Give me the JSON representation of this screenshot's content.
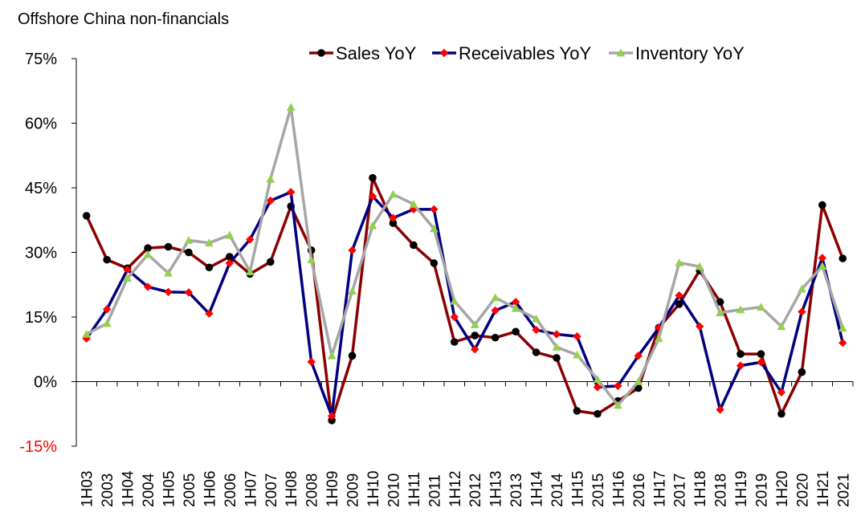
{
  "chart_data": {
    "type": "line",
    "title": "Offshore China non-financials",
    "xlabel": "",
    "ylabel": "",
    "ylim": [
      -15,
      75
    ],
    "yticks": [
      {
        "value": 75,
        "label": "75%",
        "color": "#000000"
      },
      {
        "value": 60,
        "label": "60%",
        "color": "#000000"
      },
      {
        "value": 45,
        "label": "45%",
        "color": "#000000"
      },
      {
        "value": 30,
        "label": "30%",
        "color": "#000000"
      },
      {
        "value": 15,
        "label": "15%",
        "color": "#000000"
      },
      {
        "value": 0,
        "label": "0%",
        "color": "#000000"
      },
      {
        "value": -15,
        "label": "-15%",
        "color": "#ff0000"
      }
    ],
    "categories": [
      "1H03",
      "2003",
      "1H04",
      "2004",
      "1H05",
      "2005",
      "1H06",
      "2006",
      "1H07",
      "2007",
      "1H08",
      "2008",
      "1H09",
      "2009",
      "1H10",
      "2010",
      "1H11",
      "2011",
      "1H12",
      "2012",
      "1H13",
      "2013",
      "1H14",
      "2014",
      "1H15",
      "2015",
      "1H16",
      "2016",
      "1H17",
      "2017",
      "1H18",
      "2018",
      "1H19",
      "2019",
      "1H20",
      "2020",
      "1H21",
      "2021"
    ],
    "legend_position": "top-right",
    "series": [
      {
        "name": "Sales YoY",
        "color": "#8b0000",
        "marker": "circle",
        "marker_color": "#000000",
        "values": [
          38.5,
          28.3,
          26.3,
          31.0,
          31.3,
          30.0,
          26.5,
          29.0,
          25.0,
          27.8,
          40.7,
          30.5,
          -9.0,
          6.0,
          47.3,
          36.8,
          31.7,
          27.5,
          9.2,
          10.7,
          10.2,
          11.6,
          6.8,
          5.5,
          -6.8,
          -7.5,
          -4.5,
          -1.5,
          12.5,
          18.0,
          25.8,
          18.5,
          6.4,
          6.4,
          -7.5,
          2.2,
          41.0,
          28.6
        ]
      },
      {
        "name": "Receivables YoY",
        "color": "#000080",
        "marker": "diamond",
        "marker_color": "#ff0000",
        "values": [
          10.0,
          16.8,
          26.0,
          22.0,
          20.8,
          20.7,
          15.8,
          27.5,
          33.0,
          42.0,
          44.0,
          4.6,
          -8.0,
          30.5,
          43.0,
          38.0,
          40.0,
          40.0,
          15.0,
          7.5,
          16.5,
          18.5,
          12.0,
          11.0,
          10.5,
          -1.3,
          -1.0,
          6.0,
          12.5,
          20.0,
          12.8,
          -6.5,
          3.7,
          4.5,
          -2.5,
          16.2,
          28.7,
          9.0
        ]
      },
      {
        "name": "Inventory YoY",
        "color": "#a6a6a6",
        "marker": "triangle",
        "marker_color": "#92d050",
        "values": [
          11.0,
          13.5,
          24.0,
          29.5,
          25.2,
          32.8,
          32.2,
          34.0,
          25.5,
          47.0,
          63.7,
          28.3,
          6.0,
          21.0,
          36.2,
          43.5,
          41.2,
          35.5,
          18.7,
          13.2,
          19.5,
          17.0,
          14.6,
          8.0,
          6.2,
          0.5,
          -5.5,
          0.0,
          10.0,
          27.6,
          26.7,
          16.0,
          16.7,
          17.3,
          12.8,
          21.5,
          26.8,
          12.4
        ]
      }
    ]
  }
}
